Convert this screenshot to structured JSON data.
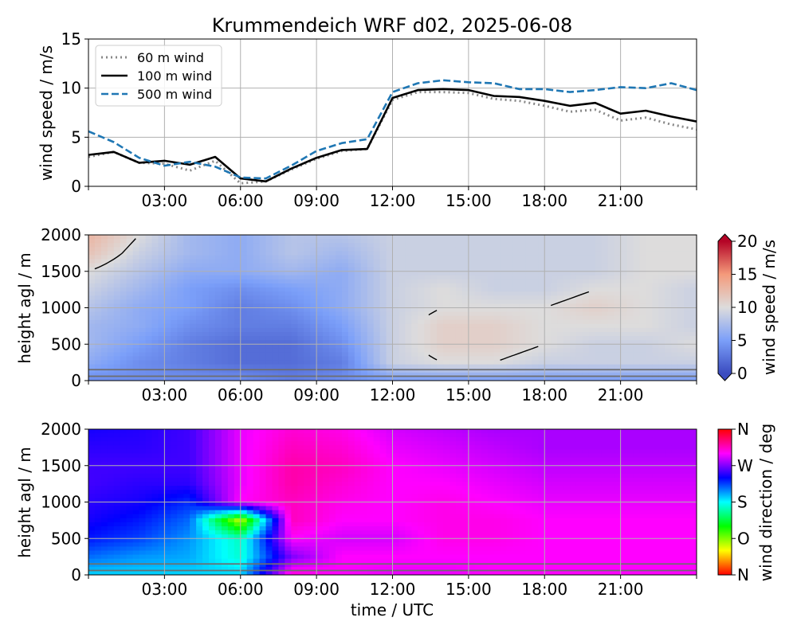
{
  "title": "Krummendeich WRF d02, 2025-06-08",
  "x_ticks": [
    "03:00",
    "06:00",
    "09:00",
    "12:00",
    "15:00",
    "18:00",
    "21:00"
  ],
  "x_tick_hours": [
    3,
    6,
    9,
    12,
    15,
    18,
    21
  ],
  "xlabel": "time / UTC",
  "chart_data": [
    {
      "type": "line",
      "ylabel": "wind speed / m/s",
      "xlim": [
        0,
        24
      ],
      "ylim": [
        0,
        15
      ],
      "y_ticks": [
        0,
        5,
        10,
        15
      ],
      "grid": true,
      "legend_position": "top-left",
      "x_hours": [
        0,
        1,
        2,
        3,
        4,
        5,
        6,
        7,
        8,
        9,
        10,
        11,
        12,
        13,
        14,
        15,
        16,
        17,
        18,
        19,
        20,
        21,
        22,
        23,
        24
      ],
      "series": [
        {
          "name": "60 m wind",
          "color": "#888888",
          "style": "dotted",
          "values": [
            3.0,
            3.5,
            2.4,
            2.3,
            1.6,
            2.6,
            0.3,
            0.5,
            1.7,
            2.8,
            3.6,
            3.8,
            8.8,
            9.6,
            9.6,
            9.5,
            8.9,
            8.7,
            8.2,
            7.6,
            7.8,
            6.7,
            7.0,
            6.3,
            5.8
          ]
        },
        {
          "name": "100 m wind",
          "color": "#000000",
          "style": "solid",
          "values": [
            3.2,
            3.5,
            2.4,
            2.6,
            2.2,
            3.0,
            0.8,
            0.5,
            1.8,
            2.9,
            3.7,
            3.8,
            9.0,
            9.8,
            9.9,
            9.8,
            9.2,
            9.1,
            8.7,
            8.2,
            8.5,
            7.4,
            7.7,
            7.1,
            6.6
          ]
        },
        {
          "name": "500 m wind",
          "color": "#1f77b4",
          "style": "dashed",
          "values": [
            5.6,
            4.5,
            2.9,
            2.1,
            2.5,
            2.0,
            0.9,
            0.8,
            2.1,
            3.6,
            4.4,
            4.8,
            9.6,
            10.5,
            10.8,
            10.6,
            10.5,
            9.9,
            9.9,
            9.6,
            9.8,
            10.1,
            10.0,
            10.5,
            9.8
          ]
        }
      ]
    },
    {
      "type": "heatmap",
      "ylabel": "height agl / m",
      "ylim": [
        0,
        2000
      ],
      "y_ticks": [
        0,
        500,
        1000,
        1500,
        2000
      ],
      "colorbar_label": "wind speed / m/s",
      "colorbar_ticks": [
        0,
        5,
        10,
        15,
        20
      ],
      "colorbar_range": [
        0,
        20
      ],
      "contour_level": 10,
      "horizontal_lines_m": [
        60,
        150
      ],
      "x_hours": [
        0,
        2,
        4,
        6,
        8,
        10,
        12,
        14,
        16,
        18,
        20,
        22,
        24
      ],
      "heights_m": [
        0,
        250,
        500,
        750,
        1000,
        1250,
        1500,
        1750,
        2000
      ],
      "values": [
        [
          4,
          4,
          4,
          4,
          3,
          4,
          5,
          5,
          5,
          5,
          5,
          5,
          5
        ],
        [
          6,
          4,
          3,
          2,
          2,
          3,
          9,
          10,
          10,
          9,
          9,
          9,
          9
        ],
        [
          7,
          5,
          3,
          2,
          2,
          4,
          9,
          11,
          11,
          10,
          9,
          9,
          10
        ],
        [
          7,
          6,
          4,
          3,
          3,
          5,
          9,
          11,
          11,
          10,
          10,
          10,
          9
        ],
        [
          8,
          6,
          5,
          3,
          4,
          6,
          9,
          10,
          10,
          10,
          11,
          10,
          9
        ],
        [
          9,
          7,
          5,
          4,
          5,
          6,
          9,
          10,
          9,
          9,
          10,
          10,
          9
        ],
        [
          10,
          8,
          6,
          6,
          7,
          6,
          9,
          9,
          9,
          9,
          9,
          10,
          10
        ],
        [
          12,
          9,
          7,
          6,
          8,
          7,
          9,
          9,
          9,
          9,
          9,
          10,
          10
        ],
        [
          13,
          10,
          7,
          6,
          8,
          8,
          9,
          9,
          9,
          9,
          9,
          10,
          10
        ]
      ]
    },
    {
      "type": "heatmap",
      "ylabel": "height agl / m",
      "ylim": [
        0,
        2000
      ],
      "y_ticks": [
        0,
        500,
        1000,
        1500,
        2000
      ],
      "colorbar_label": "wind direction / deg",
      "colorbar_ticks": [
        "N",
        "O",
        "S",
        "W",
        "N"
      ],
      "colorbar_range": [
        0,
        360
      ],
      "horizontal_lines_m": [
        60,
        150
      ],
      "x_hours": [
        0,
        2,
        4,
        6,
        8,
        10,
        12,
        14,
        16,
        18,
        20,
        22,
        24
      ],
      "heights_m": [
        0,
        250,
        500,
        750,
        1000,
        1250,
        1500,
        1750,
        2000
      ],
      "values": [
        [
          190,
          190,
          190,
          190,
          310,
          300,
          295,
          295,
          300,
          300,
          300,
          300,
          300
        ],
        [
          215,
          205,
          200,
          170,
          270,
          300,
          300,
          300,
          300,
          300,
          300,
          300,
          300
        ],
        [
          235,
          225,
          205,
          165,
          300,
          290,
          290,
          305,
          305,
          300,
          300,
          300,
          300
        ],
        [
          245,
          235,
          215,
          75,
          315,
          300,
          300,
          305,
          305,
          300,
          300,
          300,
          300
        ],
        [
          250,
          245,
          230,
          300,
          315,
          305,
          300,
          305,
          300,
          295,
          295,
          295,
          295
        ],
        [
          255,
          250,
          250,
          295,
          320,
          310,
          300,
          300,
          295,
          290,
          290,
          290,
          290
        ],
        [
          255,
          255,
          255,
          295,
          320,
          315,
          300,
          295,
          290,
          285,
          285,
          285,
          285
        ],
        [
          250,
          250,
          255,
          295,
          315,
          310,
          295,
          290,
          285,
          280,
          280,
          280,
          280
        ],
        [
          245,
          248,
          255,
          295,
          310,
          305,
          290,
          285,
          280,
          280,
          280,
          280,
          280
        ]
      ]
    }
  ]
}
